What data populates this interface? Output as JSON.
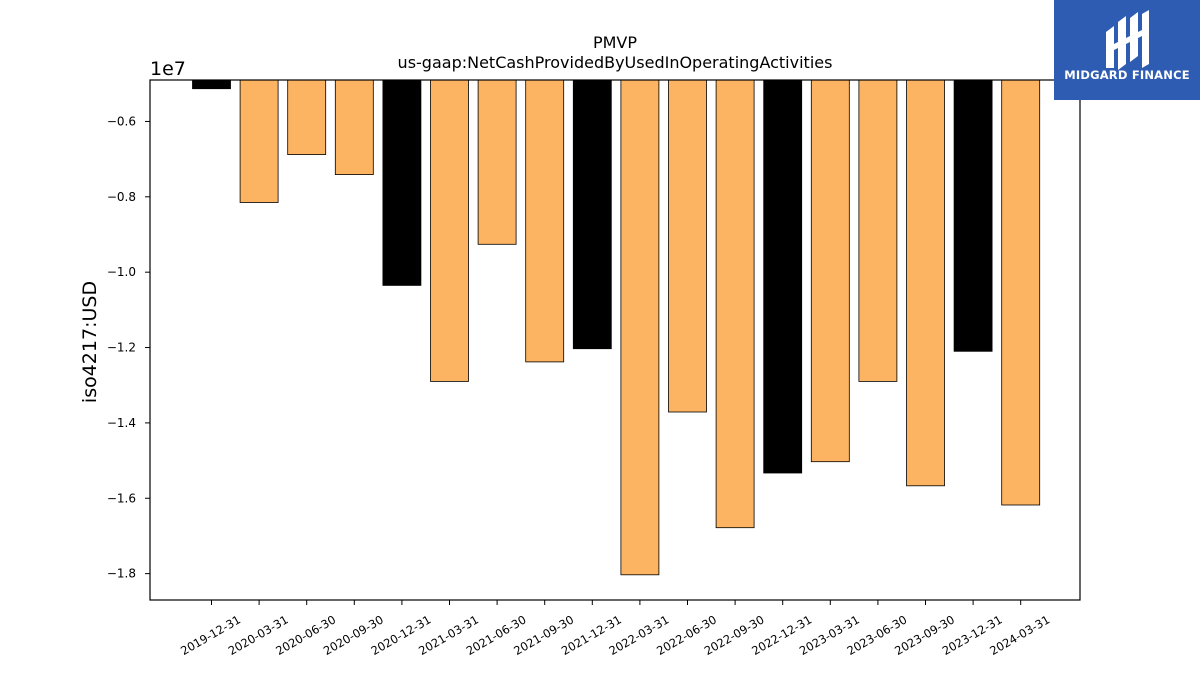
{
  "chart_data": {
    "type": "bar",
    "title": "PMVP",
    "subtitle": "us-gaap:NetCashProvidedByUsedInOperatingActivities",
    "ylabel": "iso4217:USD",
    "xlabel": "",
    "offset_label": "1e7",
    "ylim": [
      -1.87,
      -0.49
    ],
    "yticks": [
      -0.6,
      -0.8,
      -1.0,
      -1.2,
      -1.4,
      -1.6,
      -1.8
    ],
    "ytick_labels": [
      "−0.6",
      "−0.8",
      "−1.0",
      "−1.2",
      "−1.4",
      "−1.6",
      "−1.8"
    ],
    "bar_base": -0.49,
    "categories": [
      "2019-12-31",
      "2020-03-31",
      "2020-06-30",
      "2020-09-30",
      "2020-12-31",
      "2021-03-31",
      "2021-06-30",
      "2021-09-30",
      "2021-12-31",
      "2022-03-31",
      "2022-06-30",
      "2022-09-30",
      "2022-12-31",
      "2023-03-31",
      "2023-06-30",
      "2023-09-30",
      "2023-12-31",
      "2024-03-31"
    ],
    "values": [
      -0.513,
      -0.815,
      -0.688,
      -0.741,
      -1.035,
      -1.29,
      -0.926,
      -1.238,
      -1.203,
      -1.803,
      -1.371,
      -1.678,
      -1.533,
      -1.503,
      -1.29,
      -1.567,
      -1.21,
      -1.618
    ],
    "colors": [
      "#000000",
      "#fdb462",
      "#fdb462",
      "#fdb462",
      "#000000",
      "#fdb462",
      "#fdb462",
      "#fdb462",
      "#000000",
      "#fdb462",
      "#fdb462",
      "#fdb462",
      "#000000",
      "#fdb462",
      "#fdb462",
      "#fdb462",
      "#000000",
      "#fdb462"
    ],
    "grid": false
  },
  "logo": {
    "text": "MIDGARD FINANCE",
    "bg_color": "#2f5cb3"
  }
}
